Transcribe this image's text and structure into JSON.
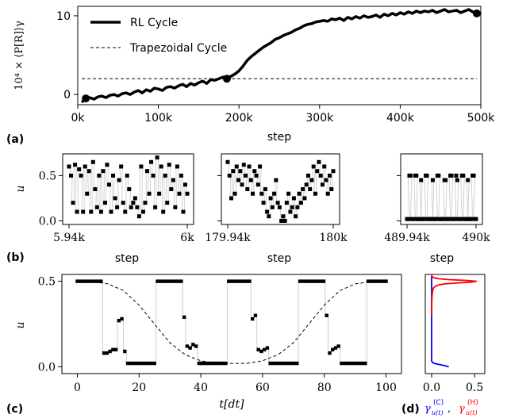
{
  "figure": {
    "panel_labels": [
      "(a)",
      "(b)",
      "(c)",
      "(d)"
    ],
    "colors": {
      "ink": "#000000",
      "cold": "#0000ff",
      "hot": "#ff0000",
      "frame": "#000000",
      "connector": "#c8c8c8"
    }
  },
  "chart_data": [
    {
      "id": "a",
      "type": "line",
      "panel_label": "(a)",
      "xlabel": "step",
      "ylabel": "10⁴ × ⟨P[R]⟩γ",
      "xlim": [
        0,
        500000
      ],
      "ylim": [
        -1.3,
        11.2
      ],
      "x_ticks": [
        0,
        100000,
        200000,
        300000,
        400000,
        500000
      ],
      "x_tick_labels": [
        "0k",
        "100k",
        "200k",
        "300k",
        "400k",
        "500k"
      ],
      "y_ticks": [
        0,
        10
      ],
      "y_tick_labels": [
        "0",
        "10"
      ],
      "legend": {
        "placement": "top-left",
        "entries": [
          "RL Cycle",
          "Trapezoidal Cycle"
        ]
      },
      "series": [
        {
          "name": "RL Cycle",
          "style": "thick-solid",
          "x": [
            5000,
            10000,
            15000,
            20000,
            25000,
            30000,
            35000,
            40000,
            45000,
            50000,
            55000,
            60000,
            65000,
            70000,
            75000,
            80000,
            85000,
            90000,
            95000,
            100000,
            105000,
            110000,
            115000,
            120000,
            125000,
            130000,
            135000,
            140000,
            145000,
            150000,
            155000,
            160000,
            165000,
            170000,
            175000,
            180000,
            185000,
            190000,
            195000,
            200000,
            205000,
            210000,
            215000,
            220000,
            225000,
            230000,
            235000,
            240000,
            245000,
            250000,
            255000,
            260000,
            265000,
            270000,
            275000,
            280000,
            285000,
            290000,
            295000,
            300000,
            305000,
            310000,
            315000,
            320000,
            325000,
            330000,
            335000,
            340000,
            345000,
            350000,
            355000,
            360000,
            365000,
            370000,
            375000,
            380000,
            385000,
            390000,
            395000,
            400000,
            405000,
            410000,
            415000,
            420000,
            425000,
            430000,
            435000,
            440000,
            445000,
            450000,
            455000,
            460000,
            465000,
            470000,
            475000,
            480000,
            485000,
            490000,
            495000
          ],
          "values": [
            -1.0,
            -0.5,
            -0.4,
            -0.6,
            -0.3,
            -0.2,
            -0.4,
            -0.1,
            0.0,
            -0.2,
            0.1,
            0.2,
            0.0,
            0.3,
            0.5,
            0.2,
            0.6,
            0.4,
            0.8,
            0.7,
            0.5,
            0.9,
            1.0,
            0.8,
            1.1,
            1.3,
            1.0,
            1.4,
            1.2,
            1.5,
            1.7,
            1.4,
            1.9,
            1.8,
            2.0,
            2.2,
            2.1,
            2.3,
            2.6,
            3.0,
            3.6,
            4.3,
            4.8,
            5.2,
            5.6,
            6.0,
            6.3,
            6.6,
            7.0,
            7.2,
            7.5,
            7.7,
            7.9,
            8.2,
            8.4,
            8.7,
            8.9,
            9.0,
            9.2,
            9.3,
            9.4,
            9.3,
            9.6,
            9.5,
            9.7,
            9.4,
            9.8,
            9.6,
            9.9,
            9.7,
            10.0,
            9.8,
            9.9,
            10.1,
            9.8,
            10.2,
            10.0,
            10.3,
            10.1,
            10.4,
            10.2,
            10.5,
            10.3,
            10.6,
            10.4,
            10.6,
            10.5,
            10.7,
            10.4,
            10.6,
            10.8,
            10.5,
            10.6,
            10.7,
            10.4,
            10.6,
            10.8,
            10.5,
            10.3
          ]
        },
        {
          "name": "Trapezoidal Cycle",
          "style": "dashed",
          "x": [
            5000,
            495000
          ],
          "values": [
            2.0,
            2.0
          ]
        }
      ],
      "markers": [
        {
          "x": 10000,
          "y": -0.5
        },
        {
          "x": 185000,
          "y": 2.0
        },
        {
          "x": 495000,
          "y": 10.3
        }
      ]
    },
    {
      "id": "b1",
      "type": "scatter",
      "panel_label": "(b)",
      "xlabel": "step",
      "ylabel": "u",
      "x_start": 5940,
      "xlim": [
        5940,
        6000
      ],
      "ylim": [
        -0.04,
        0.74
      ],
      "x_tick_labels": [
        "5.94k",
        "6k"
      ],
      "y_ticks": [
        0.0,
        0.5
      ],
      "y_tick_labels": [
        "0.0",
        "0.5"
      ],
      "values": [
        0.6,
        0.5,
        0.2,
        0.62,
        0.1,
        0.57,
        0.5,
        0.1,
        0.6,
        0.3,
        0.55,
        0.1,
        0.65,
        0.35,
        0.15,
        0.5,
        0.1,
        0.55,
        0.2,
        0.62,
        0.4,
        0.1,
        0.5,
        0.25,
        0.15,
        0.45,
        0.6,
        0.2,
        0.1,
        0.5,
        0.35,
        0.15,
        0.2,
        0.25,
        0.15,
        0.05,
        0.6,
        0.1,
        0.2,
        0.55,
        0.3,
        0.65,
        0.5,
        0.15,
        0.7,
        0.3,
        0.6,
        0.1,
        0.5,
        0.2,
        0.62,
        0.35,
        0.45,
        0.15,
        0.6,
        0.3,
        0.5,
        0.1,
        0.4,
        0.3
      ]
    },
    {
      "id": "b2",
      "type": "scatter",
      "xlabel": "step",
      "x_start": 179940,
      "xlim": [
        179940,
        180000
      ],
      "ylim": [
        -0.04,
        0.74
      ],
      "x_tick_labels": [
        "179.94k",
        "180k"
      ],
      "values": [
        0.65,
        0.5,
        0.25,
        0.55,
        0.3,
        0.6,
        0.45,
        0.55,
        0.4,
        0.62,
        0.5,
        0.35,
        0.6,
        0.45,
        0.3,
        0.55,
        0.5,
        0.4,
        0.6,
        0.3,
        0.2,
        0.35,
        0.1,
        0.05,
        0.25,
        0.15,
        0.3,
        0.45,
        0.2,
        0.15,
        0.0,
        0.05,
        0.0,
        0.2,
        0.3,
        0.1,
        0.15,
        0.25,
        0.05,
        0.15,
        0.3,
        0.2,
        0.35,
        0.25,
        0.4,
        0.5,
        0.35,
        0.45,
        0.6,
        0.3,
        0.55,
        0.65,
        0.5,
        0.4,
        0.6,
        0.45,
        0.3,
        0.5,
        0.35,
        0.55
      ]
    },
    {
      "id": "b3",
      "type": "scatter",
      "xlabel": "step",
      "x_start": 489940,
      "xlim": [
        489940,
        490000
      ],
      "ylim": [
        -0.04,
        0.74
      ],
      "x_tick_labels": [
        "489.94k",
        "490k"
      ],
      "values": [
        0.02,
        0.02,
        0.5,
        0.5,
        0.02,
        0.02,
        0.02,
        0.5,
        0.5,
        0.02,
        0.02,
        0.02,
        0.45,
        0.02,
        0.02,
        0.02,
        0.5,
        0.5,
        0.02,
        0.02,
        0.02,
        0.02,
        0.45,
        0.02,
        0.02,
        0.02,
        0.5,
        0.5,
        0.02,
        0.02,
        0.02,
        0.02,
        0.45,
        0.45,
        0.02,
        0.02,
        0.02,
        0.5,
        0.5,
        0.02,
        0.02,
        0.02,
        0.5,
        0.45,
        0.02,
        0.02,
        0.02,
        0.5,
        0.5,
        0.02,
        0.02,
        0.02,
        0.45,
        0.02,
        0.02,
        0.02,
        0.5,
        0.5,
        0.02,
        0.02
      ]
    },
    {
      "id": "c",
      "type": "scatter",
      "panel_label": "(c)",
      "xlabel": "t[dt]",
      "ylabel": "u",
      "xlim": [
        -5,
        105
      ],
      "ylim": [
        -0.04,
        0.54
      ],
      "x_ticks": [
        0,
        20,
        40,
        60,
        80,
        100
      ],
      "x_tick_labels": [
        "0",
        "20",
        "40",
        "60",
        "80",
        "100"
      ],
      "y_ticks": [
        0.0,
        0.5
      ],
      "y_tick_labels": [
        "0.0",
        "0.5"
      ],
      "values": [
        0.5,
        0.5,
        0.5,
        0.5,
        0.5,
        0.5,
        0.5,
        0.5,
        0.5,
        0.08,
        0.08,
        0.09,
        0.1,
        0.1,
        0.27,
        0.28,
        0.09,
        0.02,
        0.02,
        0.02,
        0.02,
        0.02,
        0.02,
        0.02,
        0.02,
        0.02,
        0.02,
        0.5,
        0.5,
        0.5,
        0.5,
        0.5,
        0.5,
        0.5,
        0.5,
        0.5,
        0.29,
        0.12,
        0.11,
        0.13,
        0.12,
        0.02,
        0.02,
        0.02,
        0.02,
        0.02,
        0.02,
        0.02,
        0.02,
        0.02,
        0.02,
        0.5,
        0.5,
        0.5,
        0.5,
        0.5,
        0.5,
        0.5,
        0.5,
        0.28,
        0.3,
        0.1,
        0.09,
        0.1,
        0.11,
        0.02,
        0.02,
        0.02,
        0.02,
        0.02,
        0.02,
        0.02,
        0.02,
        0.02,
        0.02,
        0.5,
        0.5,
        0.5,
        0.5,
        0.5,
        0.5,
        0.5,
        0.5,
        0.5,
        0.3,
        0.08,
        0.1,
        0.11,
        0.12,
        0.02,
        0.02,
        0.02,
        0.02,
        0.02,
        0.02,
        0.02,
        0.02,
        0.02,
        0.5,
        0.5,
        0.5,
        0.5,
        0.5,
        0.5,
        0.5
      ],
      "dashed_curve": {
        "x": [
          0,
          5,
          10,
          15,
          20,
          25,
          30,
          35,
          40,
          45,
          50,
          55,
          60,
          65,
          70,
          75,
          80,
          85,
          90,
          95,
          100
        ],
        "values": [
          0.5,
          0.497,
          0.485,
          0.445,
          0.36,
          0.25,
          0.14,
          0.07,
          0.035,
          0.02,
          0.02,
          0.02,
          0.035,
          0.07,
          0.14,
          0.25,
          0.36,
          0.445,
          0.485,
          0.497,
          0.5
        ]
      }
    },
    {
      "id": "d",
      "type": "line",
      "panel_label": "(d)",
      "xlabel_parts": [
        "γ",
        "u(t)",
        "(C)",
        ",",
        "γ",
        "u(t)",
        "(H)"
      ],
      "xlim": [
        0,
        0.6
      ],
      "ylim": [
        -0.04,
        0.54
      ],
      "x_ticks": [
        0.0,
        0.5
      ],
      "x_tick_labels": [
        "0.0",
        "0.5"
      ],
      "series": [
        {
          "name": "(C)",
          "color": "#0000ff",
          "y": [
            0.0,
            0.005,
            0.01,
            0.015,
            0.02,
            0.025,
            0.03,
            0.035,
            0.04,
            0.05,
            0.06,
            0.08,
            0.1,
            0.15,
            0.2,
            0.25,
            0.3,
            0.35,
            0.4,
            0.45,
            0.48,
            0.49,
            0.5,
            0.51,
            0.52,
            0.53
          ],
          "values": [
            0.2,
            0.16,
            0.12,
            0.07,
            0.03,
            0.01,
            0.005,
            0.0,
            0.0,
            0.0,
            0.0,
            0.0,
            0.0,
            0.0,
            0.0,
            0.0,
            0.0,
            0.0,
            0.0,
            0.0,
            0.0,
            0.0,
            0.0,
            0.0,
            0.0,
            0.0
          ]
        },
        {
          "name": "(H)",
          "color": "#ff0000",
          "y": [
            0.3,
            0.4,
            0.44,
            0.46,
            0.47,
            0.48,
            0.485,
            0.49,
            0.495,
            0.5,
            0.505,
            0.51,
            0.515,
            0.52,
            0.525,
            0.53,
            0.54
          ],
          "values": [
            0.0,
            0.003,
            0.01,
            0.02,
            0.04,
            0.09,
            0.16,
            0.3,
            0.46,
            0.52,
            0.4,
            0.2,
            0.08,
            0.03,
            0.01,
            0.003,
            0.0
          ]
        }
      ]
    }
  ]
}
